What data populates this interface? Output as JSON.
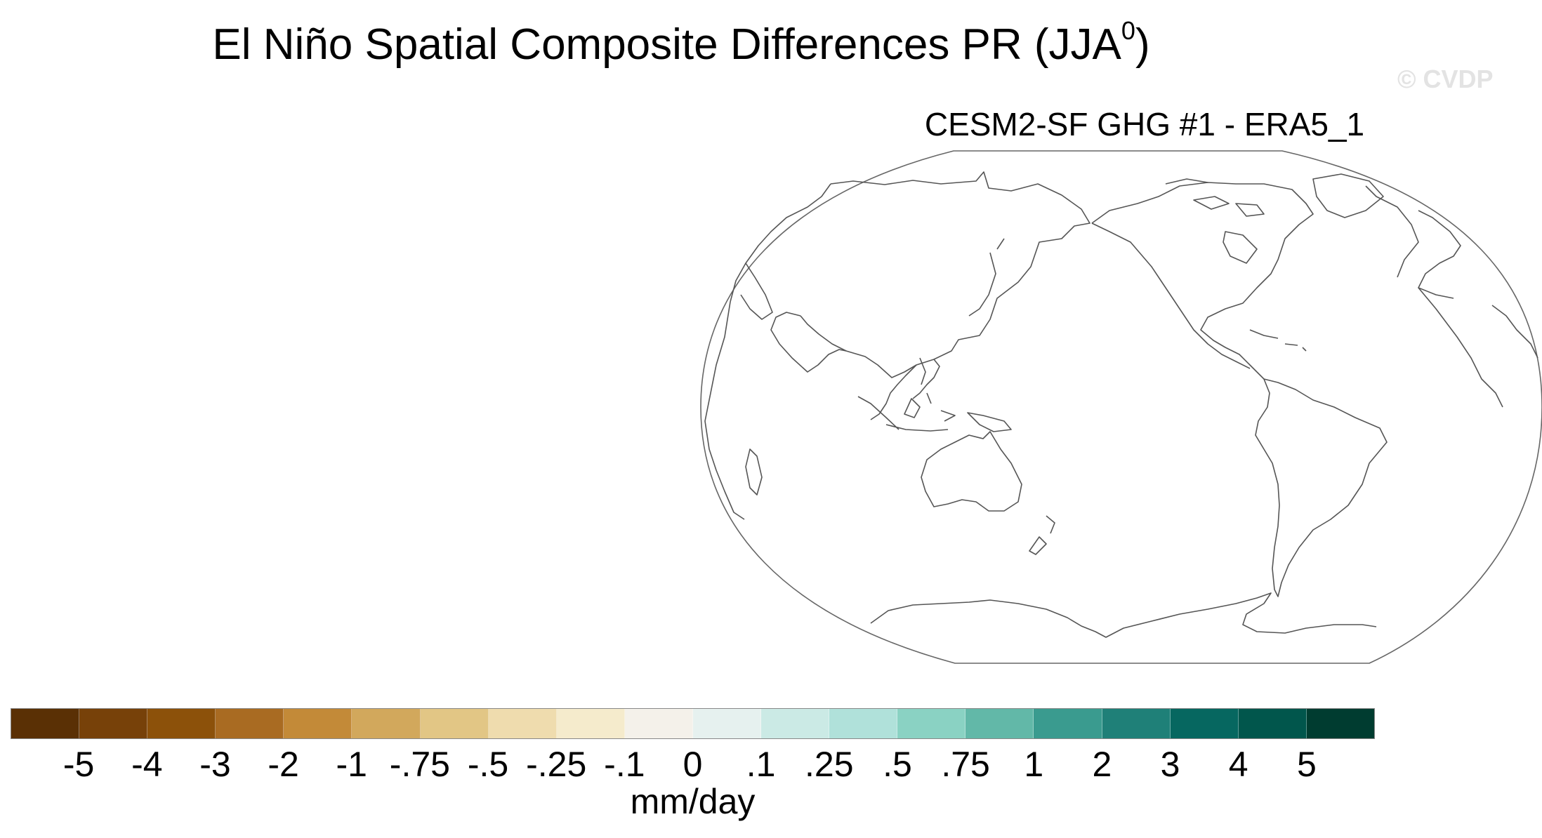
{
  "title": "El Niño Spatial Composite Differences PR (JJA",
  "title_superscript": "0",
  "title_close": ")",
  "watermark": "© CVDP",
  "panel": {
    "subtitle": "CESM2-SF GHG #1 - ERA5_1",
    "projection": "robinson",
    "central_longitude": 180,
    "coastline_color": "#555555",
    "field": "empty"
  },
  "colorbar": {
    "units": "mm/day",
    "colors": [
      "#5a3005",
      "#774109",
      "#8c510a",
      "#a96b22",
      "#c38a38",
      "#d2a85c",
      "#e2c685",
      "#efdcae",
      "#f5ebcc",
      "#f4f1ea",
      "#e6f1ef",
      "#cbeae5",
      "#b0e1da",
      "#8ad2c3",
      "#62b8a8",
      "#3a9b8f",
      "#1f8078",
      "#066760",
      "#01564c",
      "#003c30"
    ],
    "tick_labels": [
      "-5",
      "-4",
      "-3",
      "-2",
      "-1",
      "-.75",
      "-.5",
      "-.25",
      "-.1",
      "0",
      ".1",
      ".25",
      ".5",
      ".75",
      "1",
      "2",
      "3",
      "4",
      "5"
    ]
  }
}
